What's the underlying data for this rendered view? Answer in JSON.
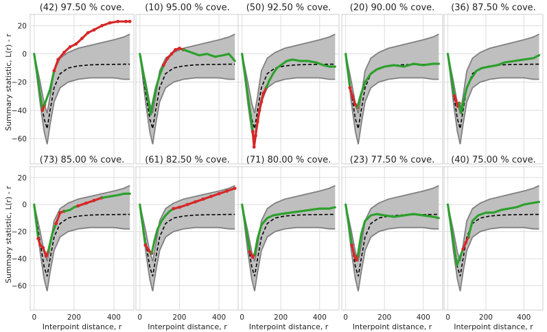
{
  "chart_data": {
    "type": "line",
    "ylabel": "Summary statistic, L(r) - r",
    "xlabel": "Interpoint distance, r",
    "xlim": [
      -20,
      500
    ],
    "ylim": [
      -78,
      28
    ],
    "xticks": [
      0,
      200,
      400
    ],
    "yticks": [
      -60,
      -40,
      -20,
      0,
      20
    ],
    "grid": true,
    "colors": {
      "envelope_fill": "#bfbfbf",
      "envelope_edge": "#7f7f7f",
      "theoretical": "#000000",
      "inside": "#2ca02c",
      "outside": "#d62728"
    },
    "envelope": {
      "r": [
        0,
        30,
        50,
        65,
        80,
        100,
        130,
        170,
        220,
        280,
        340,
        400,
        450,
        480
      ],
      "upper": [
        0,
        -20,
        -35,
        -42,
        -30,
        -12,
        -3,
        1,
        4,
        6,
        8,
        10,
        12,
        14
      ],
      "lower": [
        0,
        -35,
        -55,
        -64,
        -50,
        -34,
        -24,
        -20,
        -18,
        -17,
        -17,
        -17,
        -18,
        -18
      ]
    },
    "theoretical": {
      "r": [
        0,
        30,
        50,
        65,
        80,
        100,
        130,
        170,
        220,
        280,
        340,
        400,
        450,
        480
      ],
      "y": [
        0,
        -28,
        -46,
        -53,
        -40,
        -24,
        -14,
        -10,
        -8.5,
        -7.8,
        -7.5,
        -7.4,
        -7.3,
        -7.3
      ]
    },
    "panels": [
      {
        "title": "(42) 97.50 % cove.",
        "series": [
          {
            "status": "inside",
            "x": [
              0,
              42
            ],
            "y": [
              0,
              -40
            ]
          },
          {
            "status": "outside",
            "x": [
              42,
              52
            ],
            "y": [
              -40,
              -36
            ]
          },
          {
            "status": "inside",
            "x": [
              52,
              80,
              100
            ],
            "y": [
              -36,
              -25,
              -12
            ]
          },
          {
            "status": "outside",
            "x": [
              100,
              120,
              150,
              180,
              210,
              240,
              270,
              300,
              340,
              380,
              420,
              460,
              480
            ],
            "y": [
              -12,
              -4,
              1,
              5,
              7,
              11,
              15,
              17,
              20,
              22,
              23,
              23,
              23
            ]
          }
        ]
      },
      {
        "title": "(10) 95.00 % cove.",
        "series": [
          {
            "status": "inside",
            "x": [
              0,
              55,
              65,
              80,
              100,
              120
            ],
            "y": [
              0,
              -43,
              -35,
              -25,
              -15,
              -8
            ]
          },
          {
            "status": "outside",
            "x": [
              120,
              140,
              160,
              180,
              200,
              220
            ],
            "y": [
              -8,
              -3,
              0,
              3,
              4,
              3
            ]
          },
          {
            "status": "inside",
            "x": [
              220,
              260,
              300,
              340,
              380,
              420,
              450,
              480
            ],
            "y": [
              3,
              1,
              -1,
              0,
              -2,
              -1,
              0,
              -5
            ]
          }
        ]
      },
      {
        "title": "(50) 92.50 % cove.",
        "series": [
          {
            "status": "inside",
            "x": [
              0,
              55
            ],
            "y": [
              0,
              -55
            ]
          },
          {
            "status": "outside",
            "x": [
              55,
              62,
              70,
              80,
              90,
              100,
              110,
              125
            ],
            "y": [
              -55,
              -66,
              -58,
              -48,
              -40,
              -34,
              -28,
              -24
            ]
          },
          {
            "status": "inside",
            "x": [
              125,
              140,
              160,
              180,
              200,
              230,
              260,
              300,
              340,
              380,
              420,
              450,
              480
            ],
            "y": [
              -24,
              -19,
              -14,
              -10,
              -8,
              -5,
              -4,
              -5,
              -5,
              -6,
              -8,
              -9,
              -9
            ]
          }
        ]
      },
      {
        "title": "(20) 90.00 % cove.",
        "series": [
          {
            "status": "inside",
            "x": [
              0,
              22
            ],
            "y": [
              0,
              -24
            ]
          },
          {
            "status": "outside",
            "x": [
              22,
              35,
              50,
              60
            ],
            "y": [
              -24,
              -30,
              -36,
              -38
            ]
          },
          {
            "status": "inside",
            "x": [
              60,
              80,
              100,
              130,
              160,
              200,
              250,
              300,
              350,
              400,
              450,
              480
            ],
            "y": [
              -38,
              -28,
              -20,
              -14,
              -11,
              -9,
              -8,
              -9,
              -7,
              -8,
              -7,
              -7
            ]
          }
        ]
      },
      {
        "title": "(36) 87.50 % cove.",
        "series": [
          {
            "status": "inside",
            "x": [
              0,
              35
            ],
            "y": [
              0,
              -30
            ]
          },
          {
            "status": "outside",
            "x": [
              35,
              42,
              52,
              60
            ],
            "y": [
              -30,
              -33,
              -37,
              -35
            ]
          },
          {
            "status": "inside",
            "x": [
              60,
              70,
              85,
              100,
              120,
              150,
              180,
              220,
              260,
              300,
              350,
              400,
              450,
              480
            ],
            "y": [
              -35,
              -42,
              -32,
              -24,
              -18,
              -12,
              -10,
              -9,
              -8,
              -6,
              -5,
              -4,
              -3,
              -1
            ]
          }
        ]
      },
      {
        "title": "(73) 85.00 % cove.",
        "series": [
          {
            "status": "inside",
            "x": [
              0,
              20
            ],
            "y": [
              0,
              -25
            ]
          },
          {
            "status": "outside",
            "x": [
              20,
              30,
              45,
              60,
              70
            ],
            "y": [
              -25,
              -30,
              -32,
              -38,
              -35
            ]
          },
          {
            "status": "inside",
            "x": [
              70,
              90,
              110
            ],
            "y": [
              -35,
              -22,
              -14
            ]
          },
          {
            "status": "outside",
            "x": [
              110,
              130,
              150
            ],
            "y": [
              -14,
              -6,
              -5
            ]
          },
          {
            "status": "inside",
            "x": [
              150,
              180,
              200,
              220
            ],
            "y": [
              -5,
              -4,
              -2,
              -1
            ]
          },
          {
            "status": "outside",
            "x": [
              220,
              260,
              300,
              340
            ],
            "y": [
              -1,
              1,
              3,
              5
            ]
          },
          {
            "status": "inside",
            "x": [
              340,
              380,
              420,
              450,
              480
            ],
            "y": [
              5,
              6,
              7,
              8,
              8
            ]
          }
        ]
      },
      {
        "title": "(61) 82.50 % cove.",
        "series": [
          {
            "status": "inside",
            "x": [
              0,
              28
            ],
            "y": [
              0,
              -30
            ]
          },
          {
            "status": "outside",
            "x": [
              28,
              45,
              60
            ],
            "y": [
              -30,
              -34,
              -36
            ]
          },
          {
            "status": "inside",
            "x": [
              60,
              75,
              90,
              110,
              130,
              150,
              170
            ],
            "y": [
              -36,
              -26,
              -18,
              -12,
              -8,
              -5,
              -3
            ]
          },
          {
            "status": "outside",
            "x": [
              170,
              200,
              240,
              280,
              320,
              360,
              400,
              440,
              480
            ],
            "y": [
              -3,
              -2,
              0,
              2,
              4,
              6,
              8,
              10,
              12
            ]
          }
        ]
      },
      {
        "title": "(71) 80.00 % cove.",
        "series": [
          {
            "status": "inside",
            "x": [
              0,
              40
            ],
            "y": [
              0,
              -35
            ]
          },
          {
            "status": "outside",
            "x": [
              40,
              55,
              65
            ],
            "y": [
              -35,
              -39,
              -37
            ]
          },
          {
            "status": "inside",
            "x": [
              65,
              80,
              100,
              130,
              160,
              200,
              250,
              300,
              350,
              400,
              450,
              480
            ],
            "y": [
              -37,
              -25,
              -15,
              -10,
              -8,
              -7,
              -6,
              -5,
              -4,
              -3,
              -3,
              -2
            ]
          }
        ]
      },
      {
        "title": "(23) 77.50 % cove.",
        "series": [
          {
            "status": "inside",
            "x": [
              0,
              32
            ],
            "y": [
              0,
              -30
            ]
          },
          {
            "status": "outside",
            "x": [
              32,
              45,
              55,
              62
            ],
            "y": [
              -30,
              -38,
              -41,
              -38
            ]
          },
          {
            "status": "inside",
            "x": [
              62,
              80,
              100,
              130,
              160,
              200,
              250,
              300,
              350,
              400,
              450,
              480
            ],
            "y": [
              -38,
              -22,
              -12,
              -8,
              -7,
              -8,
              -9,
              -8,
              -7,
              -8,
              -9,
              -10
            ]
          }
        ]
      },
      {
        "title": "(40) 75.00 % cove.",
        "series": [
          {
            "status": "inside",
            "x": [
              0,
              48,
              60,
              80
            ],
            "y": [
              0,
              -45,
              -40,
              -33
            ]
          },
          {
            "status": "outside",
            "x": [
              80,
              95,
              108
            ],
            "y": [
              -33,
              -28,
              -24
            ]
          },
          {
            "status": "inside",
            "x": [
              108,
              130,
              160,
              200,
              240,
              280,
              320,
              360,
              400,
              440,
              480
            ],
            "y": [
              -24,
              -12,
              -8,
              -6,
              -6,
              -4,
              -3,
              -2,
              0,
              1,
              2
            ]
          }
        ]
      }
    ]
  }
}
